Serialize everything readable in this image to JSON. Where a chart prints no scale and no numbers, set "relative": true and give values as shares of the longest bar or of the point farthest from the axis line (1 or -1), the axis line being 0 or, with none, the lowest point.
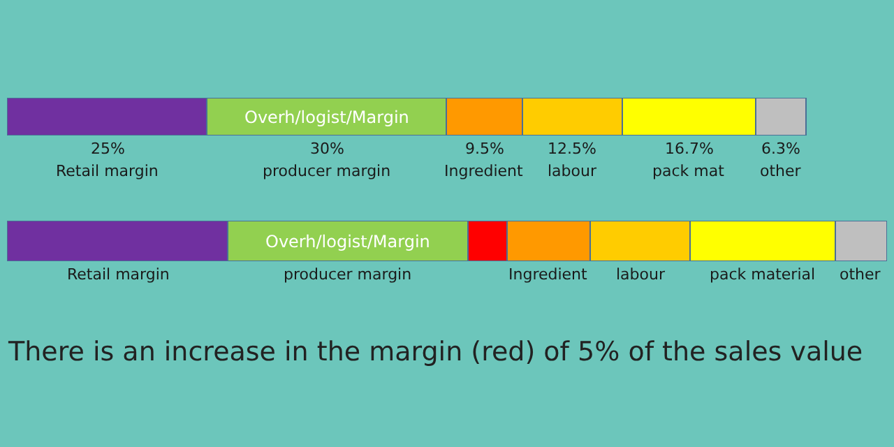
{
  "chart_data": [
    {
      "type": "bar",
      "orientation": "horizontal",
      "stacked": true,
      "categories": [
        null
      ],
      "tick_labels": false,
      "series": [
        {
          "name": "Retail margin",
          "color": "#7030a0",
          "values": [
            25
          ],
          "value_labels": [
            "25%"
          ]
        },
        {
          "name": "producer margin",
          "color": "#92d050",
          "values": [
            30
          ],
          "value_labels": [
            "30%"
          ]
        },
        {
          "name": "Ingredient",
          "color": "#ff9900",
          "values": [
            9.5
          ],
          "value_labels": [
            "9.5%"
          ]
        },
        {
          "name": "labour",
          "color": "#ffcc00",
          "values": [
            12.5
          ],
          "value_labels": [
            "12.5%"
          ]
        },
        {
          "name": "pack mat",
          "color": "#ffff00",
          "values": [
            16.7
          ],
          "value_labels": [
            "16.7%"
          ]
        },
        {
          "name": "other",
          "color": "#bfbfbf",
          "values": [
            6.3
          ],
          "value_labels": [
            "6.3%"
          ]
        }
      ],
      "annotations": [
        "Overh/logist/Margin"
      ]
    },
    {
      "type": "bar",
      "orientation": "horizontal",
      "stacked": true,
      "categories": [
        null
      ],
      "relative": true,
      "tick_labels": false,
      "series": [
        {
          "name": "Retail margin",
          "color": "#7030a0",
          "values": [
            0.251
          ]
        },
        {
          "name": "producer margin",
          "color": "#92d050",
          "values": [
            0.273
          ]
        },
        {
          "color": "#ff0000",
          "values": [
            0.044
          ]
        },
        {
          "name": "Ingredient",
          "color": "#ff9900",
          "values": [
            0.095
          ]
        },
        {
          "name": "labour",
          "color": "#ffcc00",
          "values": [
            0.113
          ]
        },
        {
          "name": "pack material",
          "color": "#ffff00",
          "values": [
            0.165
          ]
        },
        {
          "name": "other",
          "color": "#bfbfbf",
          "values": [
            0.059
          ]
        }
      ],
      "annotations": [
        "Overh/logist/Margin",
        "There is an increase in the margin (red) of 5% of the sales value"
      ]
    }
  ]
}
